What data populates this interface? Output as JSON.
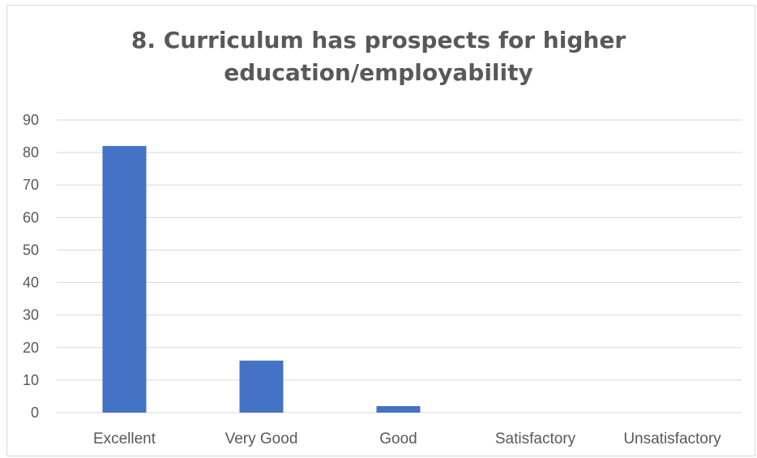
{
  "chart_data": {
    "type": "bar",
    "title_lines": [
      "8. Curriculum has prospects for higher",
      "education/employability"
    ],
    "categories": [
      "Excellent",
      "Very Good",
      "Good",
      "Satisfactory",
      "Unsatisfactory"
    ],
    "values": [
      82,
      16,
      2,
      0,
      0
    ],
    "ylim": [
      0,
      90
    ],
    "yticks": [
      0,
      10,
      20,
      30,
      40,
      50,
      60,
      70,
      80,
      90
    ],
    "grid": true,
    "legend": "none",
    "bar_color": "#4472c4",
    "grid_color": "#d9d9d9",
    "text_color": "#595959"
  }
}
